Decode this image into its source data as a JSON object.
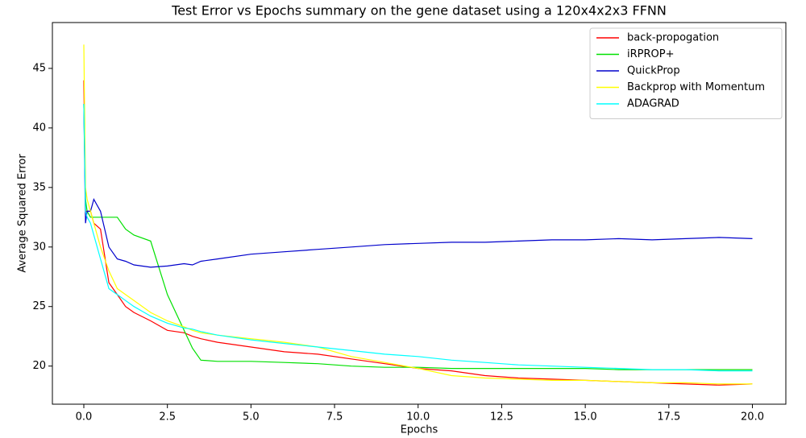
{
  "chart_data": {
    "type": "line",
    "title": "Test Error vs Epochs summary on the gene dataset using a 120x4x2x3 FFNN",
    "x_label": "Epochs",
    "y_label": "Average Squared Error",
    "x": [
      0,
      0.05,
      0.1,
      0.2,
      0.3,
      0.5,
      0.75,
      1,
      1.25,
      1.5,
      2,
      2.5,
      3,
      3.25,
      3.5,
      4,
      5,
      6,
      7,
      8,
      9,
      10,
      11,
      12,
      13,
      14,
      15,
      16,
      17,
      18,
      19,
      20
    ],
    "series": [
      {
        "name": "back-propogation",
        "color": "#ff0000",
        "values": [
          44,
          33,
          33,
          33,
          32,
          31.5,
          27,
          26,
          25,
          24.5,
          23.8,
          23,
          22.8,
          22.5,
          22.3,
          22,
          21.6,
          21.2,
          21,
          20.6,
          20.2,
          19.8,
          19.6,
          19.2,
          19,
          18.9,
          18.8,
          18.7,
          18.6,
          18.5,
          18.4,
          18.5
        ]
      },
      {
        "name": "iRPROP+",
        "color": "#00e000",
        "values": [
          42,
          34,
          33,
          32.5,
          32.5,
          32.5,
          32.5,
          32.5,
          31.5,
          31,
          30.5,
          26,
          23,
          21.5,
          20.5,
          20.4,
          20.4,
          20.3,
          20.2,
          20,
          19.9,
          19.9,
          19.8,
          19.8,
          19.8,
          19.8,
          19.8,
          19.7,
          19.7,
          19.7,
          19.7,
          19.7
        ]
      },
      {
        "name": "QuickProp",
        "color": "#0000cc",
        "values": [
          42,
          32,
          33,
          33,
          34,
          33,
          30,
          29,
          28.8,
          28.5,
          28.3,
          28.4,
          28.6,
          28.5,
          28.8,
          29,
          29.4,
          29.6,
          29.8,
          30,
          30.2,
          30.3,
          30.4,
          30.4,
          30.5,
          30.6,
          30.6,
          30.7,
          30.6,
          30.7,
          30.8,
          30.7
        ]
      },
      {
        "name": "Backprop with Momentum",
        "color": "#ffff00",
        "values": [
          47,
          35,
          34,
          33,
          32,
          30,
          28,
          26.5,
          26,
          25.5,
          24.5,
          23.8,
          23.3,
          23,
          22.8,
          22.6,
          22.3,
          22,
          21.6,
          20.8,
          20.3,
          19.8,
          19.2,
          19,
          18.9,
          18.8,
          18.8,
          18.7,
          18.6,
          18.6,
          18.5,
          18.5
        ]
      },
      {
        "name": "ADAGRAD",
        "color": "#00ffff",
        "values": [
          42,
          33,
          32.5,
          32,
          31,
          29,
          26.5,
          26,
          25.5,
          25,
          24.2,
          23.6,
          23.2,
          23.1,
          22.9,
          22.6,
          22.2,
          21.9,
          21.6,
          21.3,
          21,
          20.8,
          20.5,
          20.3,
          20.1,
          20,
          19.9,
          19.8,
          19.7,
          19.7,
          19.6,
          19.6
        ]
      }
    ],
    "xlim": [
      -0.94,
      21.0
    ],
    "ylim": [
      16.8,
      48.85
    ],
    "xticks": [
      {
        "value": 0,
        "label": "0.0"
      },
      2.5,
      {
        "value": 5,
        "label": "5.0"
      },
      7.5,
      {
        "value": 10,
        "label": "10.0"
      },
      12.5,
      {
        "value": 15,
        "label": "15.0"
      },
      17.5,
      {
        "value": 20,
        "label": "20.0"
      }
    ],
    "yticks": [
      20,
      25,
      30,
      35,
      40,
      45
    ],
    "grid": false,
    "legend": "upper right"
  }
}
